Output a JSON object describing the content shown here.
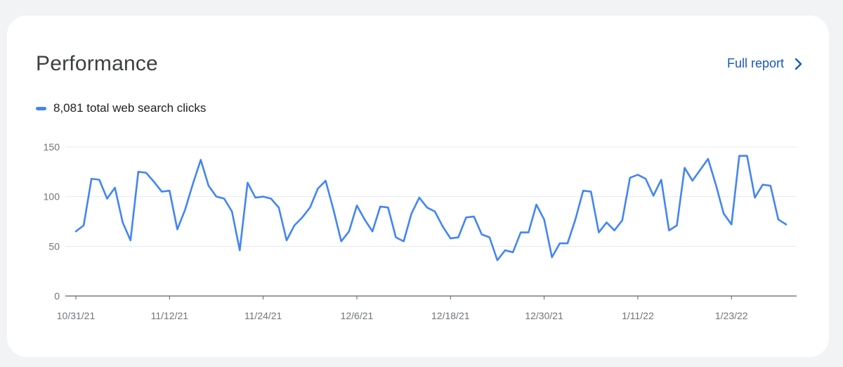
{
  "card": {
    "title": "Performance",
    "full_report_label": "Full report"
  },
  "colors": {
    "series": "#4285f4",
    "link": "#1a56c4",
    "grid": "#e8eaed",
    "axis": "#5f6368"
  },
  "icons": {
    "full_report": "chevron-right-icon",
    "legend": "legend-swatch"
  },
  "chart_data": {
    "type": "line",
    "title": "",
    "xlabel": "",
    "ylabel": "",
    "ylim": [
      0,
      150
    ],
    "yticks": [
      0,
      50,
      100,
      150
    ],
    "xlim": [
      "10/31/21",
      "1/30/22"
    ],
    "xtick_labels": [
      "10/31/21",
      "11/12/21",
      "11/24/21",
      "12/6/21",
      "12/18/21",
      "12/30/21",
      "1/11/22",
      "1/23/22"
    ],
    "grid": true,
    "legend_position": "top-left",
    "series": [
      {
        "name": "8,081 total web search clicks",
        "color": "#4285f4",
        "x": [
          "10/31/21",
          "11/1/21",
          "11/2/21",
          "11/3/21",
          "11/4/21",
          "11/5/21",
          "11/6/21",
          "11/7/21",
          "11/8/21",
          "11/9/21",
          "11/10/21",
          "11/11/21",
          "11/12/21",
          "11/13/21",
          "11/14/21",
          "11/15/21",
          "11/16/21",
          "11/17/21",
          "11/18/21",
          "11/19/21",
          "11/20/21",
          "11/21/21",
          "11/22/21",
          "11/23/21",
          "11/24/21",
          "11/25/21",
          "11/26/21",
          "11/27/21",
          "11/28/21",
          "11/29/21",
          "11/30/21",
          "12/1/21",
          "12/2/21",
          "12/3/21",
          "12/4/21",
          "12/5/21",
          "12/6/21",
          "12/7/21",
          "12/8/21",
          "12/9/21",
          "12/10/21",
          "12/11/21",
          "12/12/21",
          "12/13/21",
          "12/14/21",
          "12/15/21",
          "12/16/21",
          "12/17/21",
          "12/18/21",
          "12/19/21",
          "12/20/21",
          "12/21/21",
          "12/22/21",
          "12/23/21",
          "12/24/21",
          "12/25/21",
          "12/26/21",
          "12/27/21",
          "12/28/21",
          "12/29/21",
          "12/30/21",
          "12/31/21",
          "1/1/22",
          "1/2/22",
          "1/3/22",
          "1/4/22",
          "1/5/22",
          "1/6/22",
          "1/7/22",
          "1/8/22",
          "1/9/22",
          "1/10/22",
          "1/11/22",
          "1/12/22",
          "1/13/22",
          "1/14/22",
          "1/15/22",
          "1/16/22",
          "1/17/22",
          "1/18/22",
          "1/19/22",
          "1/20/22",
          "1/21/22",
          "1/22/22",
          "1/23/22",
          "1/24/22",
          "1/25/22",
          "1/26/22",
          "1/27/22",
          "1/28/22",
          "1/29/22",
          "1/30/22"
        ],
        "values": [
          65,
          71,
          118,
          117,
          98,
          109,
          74,
          56,
          125,
          124,
          115,
          105,
          106,
          67,
          87,
          113,
          137,
          111,
          100,
          98,
          85,
          46,
          114,
          99,
          100,
          98,
          89,
          56,
          71,
          79,
          89,
          108,
          116,
          87,
          55,
          65,
          91,
          77,
          65,
          90,
          89,
          59,
          55,
          83,
          99,
          89,
          85,
          70,
          58,
          59,
          79,
          80,
          62,
          59,
          36,
          46,
          44,
          64,
          64,
          92,
          77,
          39,
          53,
          53,
          77,
          106,
          105,
          64,
          74,
          66,
          76,
          119,
          122,
          118,
          101,
          117,
          66,
          71,
          129,
          116,
          127,
          138,
          112,
          83,
          72,
          141,
          141,
          99,
          112,
          111,
          77,
          72
        ]
      }
    ]
  }
}
